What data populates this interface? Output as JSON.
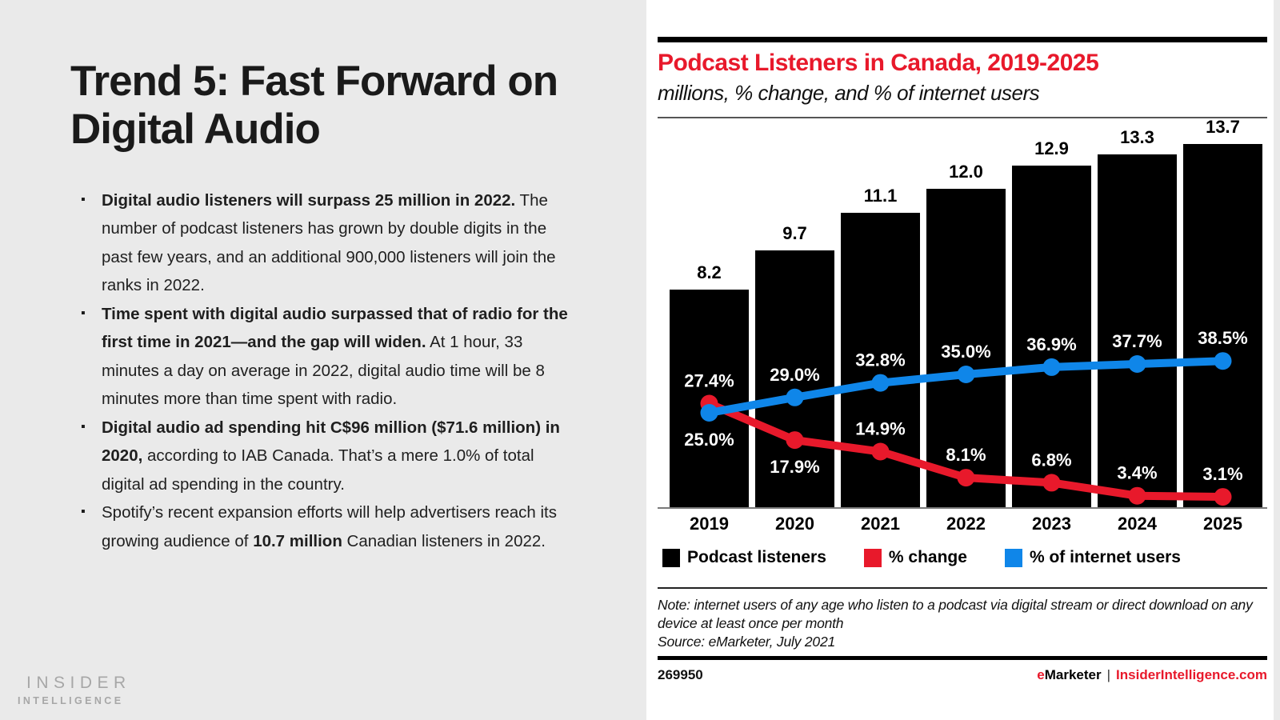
{
  "slide": {
    "title": "Trend 5: Fast Forward on Digital Audio",
    "bullets": [
      {
        "segments": [
          {
            "bold": true,
            "text": "Digital audio listeners will surpass 25 million in 2022."
          },
          {
            "bold": false,
            "text": " The number of podcast listeners has grown by double digits in the past few years, and an additional 900,000 listeners will join the ranks in 2022."
          }
        ]
      },
      {
        "segments": [
          {
            "bold": true,
            "text": "Time spent with digital audio surpassed that of radio for the first time in 2021—and the gap will widen."
          },
          {
            "bold": false,
            "text": " At 1 hour, 33 minutes a day on average in 2022, digital audio time will be 8 minutes more than time spent with radio."
          }
        ]
      },
      {
        "segments": [
          {
            "bold": true,
            "text": "Digital audio ad spending hit C$96 million ($71.6 million) in 2020,"
          },
          {
            "bold": false,
            "text": " according to IAB Canada. That’s a mere 1.0% of total digital ad spending in the country."
          }
        ]
      },
      {
        "segments": [
          {
            "bold": false,
            "text": "Spotify’s recent expansion efforts will help advertisers reach its growing audience of "
          },
          {
            "bold": true,
            "text": "10.7 million"
          },
          {
            "bold": false,
            "text": " Canadian listeners in 2022."
          }
        ]
      }
    ],
    "logo": {
      "line1": "INSIDER",
      "line2": "INTELLIGENCE"
    }
  },
  "chart": {
    "title": "Podcast Listeners in Canada, 2019-2025",
    "subtitle": "millions, % change, and % of internet users",
    "note": "Note: internet users of any age who listen to a podcast via digital stream or direct download on any device at least once per month",
    "source": "Source: eMarketer, July 2021",
    "footer_id": "269950",
    "brand_e": "e",
    "brand_marketer": "Marketer",
    "brand_divider": "|",
    "brand_site": "InsiderIntelligence.com",
    "colors": {
      "red": "#e8192b",
      "blue": "#0f86e9",
      "black": "#000000"
    }
  },
  "chart_data": {
    "type": "bar",
    "title": "Podcast Listeners in Canada, 2019-2025",
    "subtitle": "millions, % change, and % of internet users",
    "categories": [
      "2019",
      "2020",
      "2021",
      "2022",
      "2023",
      "2024",
      "2025"
    ],
    "series": [
      {
        "name": "Podcast listeners",
        "type": "bar",
        "unit": "millions",
        "color": "#000000",
        "values": [
          8.2,
          9.7,
          11.1,
          12.0,
          12.9,
          13.3,
          13.7
        ]
      },
      {
        "name": "% change",
        "type": "line",
        "unit": "%",
        "color": "#e8192b",
        "values": [
          27.4,
          17.9,
          14.9,
          8.1,
          6.8,
          3.4,
          3.1
        ],
        "label_side": [
          "above",
          "below",
          "above",
          "above",
          "above",
          "above",
          "above"
        ]
      },
      {
        "name": "% of internet users",
        "type": "line",
        "unit": "%",
        "color": "#0f86e9",
        "values": [
          25.0,
          29.0,
          32.8,
          35.0,
          36.9,
          37.7,
          38.5
        ],
        "label_side": [
          "below",
          "above",
          "above",
          "above",
          "above",
          "above",
          "above"
        ]
      }
    ],
    "legend": [
      "Podcast listeners",
      "% change",
      "% of internet users"
    ],
    "legend_position": "bottom",
    "bar_axis_max": 14.7,
    "pct_axis_range": [
      0,
      100
    ],
    "grid": false
  }
}
